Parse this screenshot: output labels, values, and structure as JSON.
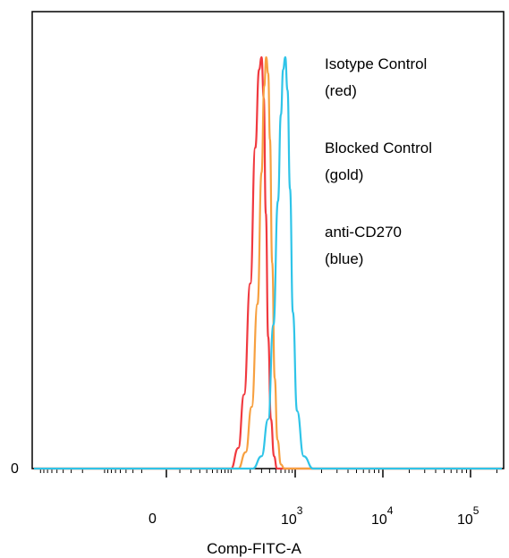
{
  "chart_data": {
    "type": "line",
    "title": "",
    "xlabel": "Comp-FITC-A",
    "ylabel": "",
    "x_scale": "biexponential",
    "y_ticks": [
      "0"
    ],
    "x_ticks": [
      {
        "label": "0",
        "value": 0
      },
      {
        "label": "10",
        "exp": "3",
        "value": 1000
      },
      {
        "label": "10",
        "exp": "4",
        "value": 10000
      },
      {
        "label": "10",
        "exp": "5",
        "value": 100000
      }
    ],
    "legend_position": "top-right",
    "legend": [
      {
        "line1": "Isotype Control",
        "line2": "(red)"
      },
      {
        "line1": "Blocked Control",
        "line2": "(gold)"
      },
      {
        "line1": "anti-CD270",
        "line2": "(blue)"
      }
    ],
    "series": [
      {
        "color": "#f0393f",
        "x": [
          100,
          130,
          160,
          200,
          240,
          275,
          300,
          325,
          350,
          380,
          420,
          470,
          520,
          580
        ],
        "y": [
          0.0,
          0.05,
          0.18,
          0.45,
          0.78,
          0.97,
          1.0,
          0.9,
          0.62,
          0.32,
          0.12,
          0.03,
          0.0,
          0.0
        ]
      },
      {
        "color": "#f7a040",
        "x": [
          130,
          170,
          210,
          260,
          300,
          330,
          355,
          380,
          405,
          440,
          480,
          530,
          600,
          680
        ],
        "y": [
          0.0,
          0.04,
          0.15,
          0.4,
          0.72,
          0.93,
          1.0,
          0.96,
          0.8,
          0.5,
          0.22,
          0.07,
          0.01,
          0.0
        ]
      },
      {
        "color": "#2fc4e8",
        "x": [
          220,
          300,
          380,
          460,
          540,
          600,
          650,
          700,
          760,
          830,
          920,
          1050,
          1250,
          1600
        ],
        "y": [
          0.0,
          0.03,
          0.12,
          0.35,
          0.65,
          0.86,
          0.97,
          1.0,
          0.92,
          0.68,
          0.38,
          0.14,
          0.03,
          0.0
        ]
      }
    ]
  }
}
